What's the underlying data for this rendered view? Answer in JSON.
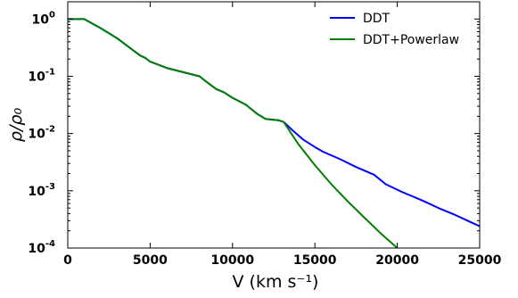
{
  "chart_data": {
    "type": "line",
    "title": "",
    "xlabel": "V (km s⁻¹)",
    "ylabel": "ρ/ρ₀",
    "xlim": [
      0,
      25000
    ],
    "ylim": [
      0.0001,
      2.0
    ],
    "yscale": "log",
    "grid": false,
    "legend": "top-right",
    "x_ticks": [
      {
        "value": 0,
        "label": "0"
      },
      {
        "value": 5000,
        "label": "5000"
      },
      {
        "value": 10000,
        "label": "10000"
      },
      {
        "value": 15000,
        "label": "15000"
      },
      {
        "value": 20000,
        "label": "20000"
      },
      {
        "value": 25000,
        "label": "25000"
      }
    ],
    "y_ticks": [
      {
        "value": 1,
        "mantissa": "10",
        "exponent": "0"
      },
      {
        "value": 0.1,
        "mantissa": "10",
        "exponent": "-1"
      },
      {
        "value": 0.01,
        "mantissa": "10",
        "exponent": "-2"
      },
      {
        "value": 0.001,
        "mantissa": "10",
        "exponent": "-3"
      },
      {
        "value": 0.0001,
        "mantissa": "10",
        "exponent": "-4"
      }
    ],
    "series": [
      {
        "name": "DDT",
        "color": "#0000ff",
        "x": [
          0,
          1000,
          2000,
          3000,
          4000,
          4400,
          4700,
          5000,
          6000,
          7000,
          8000,
          8300,
          9000,
          9500,
          10000,
          10800,
          11500,
          12000,
          12800,
          13100,
          13700,
          14300,
          15000,
          15500,
          16500,
          17500,
          18600,
          19300,
          20300,
          21500,
          22500,
          23500,
          24500,
          25000
        ],
        "y": [
          1.0,
          1.0,
          0.69,
          0.46,
          0.28,
          0.23,
          0.21,
          0.18,
          0.14,
          0.118,
          0.1,
          0.085,
          0.06,
          0.052,
          0.042,
          0.032,
          0.022,
          0.018,
          0.017,
          0.016,
          0.011,
          0.0078,
          0.0058,
          0.0048,
          0.0036,
          0.0026,
          0.0019,
          0.0013,
          0.00095,
          0.00068,
          0.0005,
          0.00038,
          0.00028,
          0.00024
        ]
      },
      {
        "name": "DDT+Powerlaw",
        "color": "#007f00",
        "x": [
          0,
          1000,
          2000,
          3000,
          4000,
          4400,
          4700,
          5000,
          6000,
          7000,
          8000,
          8300,
          9000,
          9500,
          10000,
          10800,
          11500,
          12000,
          12800,
          13100,
          14000,
          15000,
          16000,
          17000,
          18000,
          19000,
          20000
        ],
        "y": [
          1.0,
          1.0,
          0.69,
          0.46,
          0.28,
          0.23,
          0.21,
          0.18,
          0.14,
          0.118,
          0.1,
          0.085,
          0.06,
          0.052,
          0.042,
          0.032,
          0.022,
          0.018,
          0.017,
          0.016,
          0.0065,
          0.0028,
          0.0013,
          0.00065,
          0.00034,
          0.00018,
          0.0001
        ]
      }
    ]
  }
}
